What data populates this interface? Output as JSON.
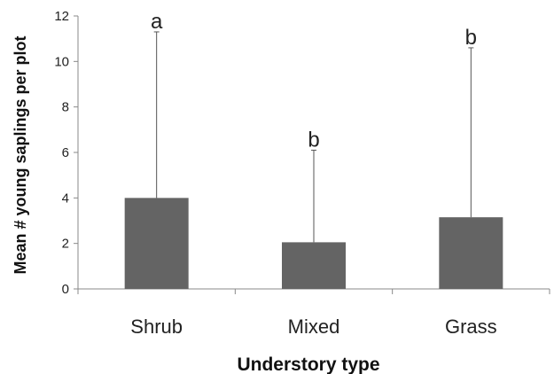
{
  "chart_data": {
    "type": "bar",
    "xlabel": "Understory type",
    "ylabel": "Mean # young saplings per plot",
    "categories": [
      "Shrub",
      "Mixed",
      "Grass"
    ],
    "values": [
      4.0,
      2.05,
      3.15
    ],
    "error_upper": [
      11.3,
      6.1,
      10.6
    ],
    "significance_labels": [
      "a",
      "b",
      "b"
    ],
    "ylim": [
      0,
      12
    ],
    "yticks": [
      "0",
      "2",
      "4",
      "6",
      "8",
      "10",
      "12"
    ],
    "grid": false,
    "bar_color": "#646464"
  }
}
